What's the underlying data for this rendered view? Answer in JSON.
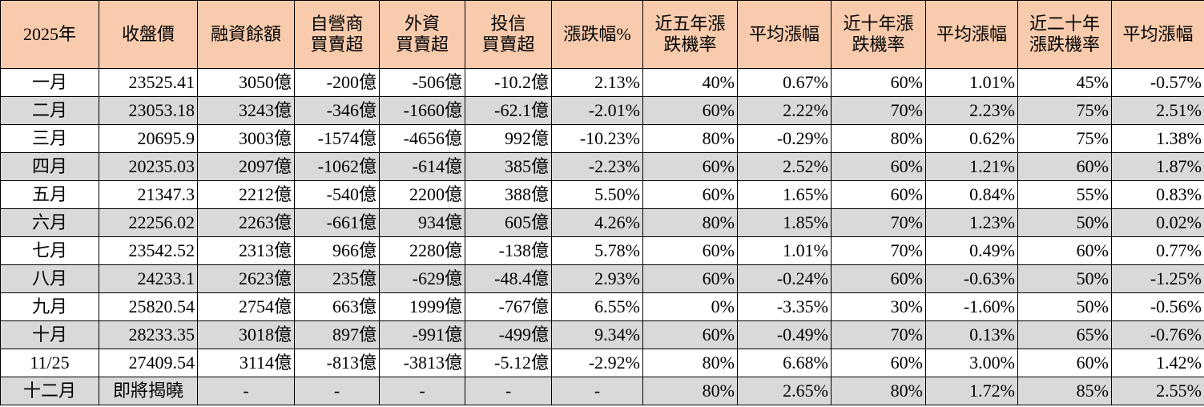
{
  "table": {
    "header": [
      "2025年",
      "收盤價",
      "融資餘額",
      "自營商\n買賣超",
      "外資\n買賣超",
      "投信\n買賣超",
      "漲跌幅%",
      "近五年漲\n跌機率",
      "平均漲幅",
      "近十年漲\n跌機率",
      "平均漲幅",
      "近二十年\n漲跌機率",
      "平均漲幅"
    ],
    "rows": [
      [
        "一月",
        "23525.41",
        "3050億",
        "-200億",
        "-506億",
        "-10.2億",
        "2.13%",
        "40%",
        "0.67%",
        "60%",
        "1.01%",
        "45%",
        "-0.57%"
      ],
      [
        "二月",
        "23053.18",
        "3243億",
        "-346億",
        "-1660億",
        "-62.1億",
        "-2.01%",
        "60%",
        "2.22%",
        "70%",
        "2.23%",
        "75%",
        "2.51%"
      ],
      [
        "三月",
        "20695.9",
        "3003億",
        "-1574億",
        "-4656億",
        "992億",
        "-10.23%",
        "80%",
        "-0.29%",
        "80%",
        "0.62%",
        "75%",
        "1.38%"
      ],
      [
        "四月",
        "20235.03",
        "2097億",
        "-1062億",
        "-614億",
        "385億",
        "-2.23%",
        "60%",
        "2.52%",
        "60%",
        "1.21%",
        "60%",
        "1.87%"
      ],
      [
        "五月",
        "21347.3",
        "2212億",
        "-540億",
        "2200億",
        "388億",
        "5.50%",
        "60%",
        "1.65%",
        "60%",
        "0.84%",
        "55%",
        "0.83%"
      ],
      [
        "六月",
        "22256.02",
        "2263億",
        "-661億",
        "934億",
        "605億",
        "4.26%",
        "80%",
        "1.85%",
        "70%",
        "1.23%",
        "50%",
        "0.02%"
      ],
      [
        "七月",
        "23542.52",
        "2313億",
        "966億",
        "2280億",
        "-138億",
        "5.78%",
        "60%",
        "1.01%",
        "70%",
        "0.49%",
        "60%",
        "0.77%"
      ],
      [
        "八月",
        "24233.1",
        "2623億",
        "235億",
        "-629億",
        "-48.4億",
        "2.93%",
        "60%",
        "-0.24%",
        "60%",
        "-0.63%",
        "50%",
        "-1.25%"
      ],
      [
        "九月",
        "25820.54",
        "2754億",
        "663億",
        "1999億",
        "-767億",
        "6.55%",
        "0%",
        "-3.35%",
        "30%",
        "-1.60%",
        "50%",
        "-0.56%"
      ],
      [
        "十月",
        "28233.35",
        "3018億",
        "897億",
        "-991億",
        "-499億",
        "9.34%",
        "60%",
        "-0.49%",
        "70%",
        "0.13%",
        "65%",
        "-0.76%"
      ],
      [
        "11/25",
        "27409.54",
        "3114億",
        "-813億",
        "-3813億",
        "-5.12億",
        "-2.92%",
        "80%",
        "6.68%",
        "60%",
        "3.00%",
        "60%",
        "1.42%"
      ],
      [
        "十二月",
        "即將揭曉",
        "-",
        "-",
        "-",
        "-",
        "-",
        "80%",
        "2.65%",
        "80%",
        "1.72%",
        "85%",
        "2.55%"
      ]
    ]
  }
}
